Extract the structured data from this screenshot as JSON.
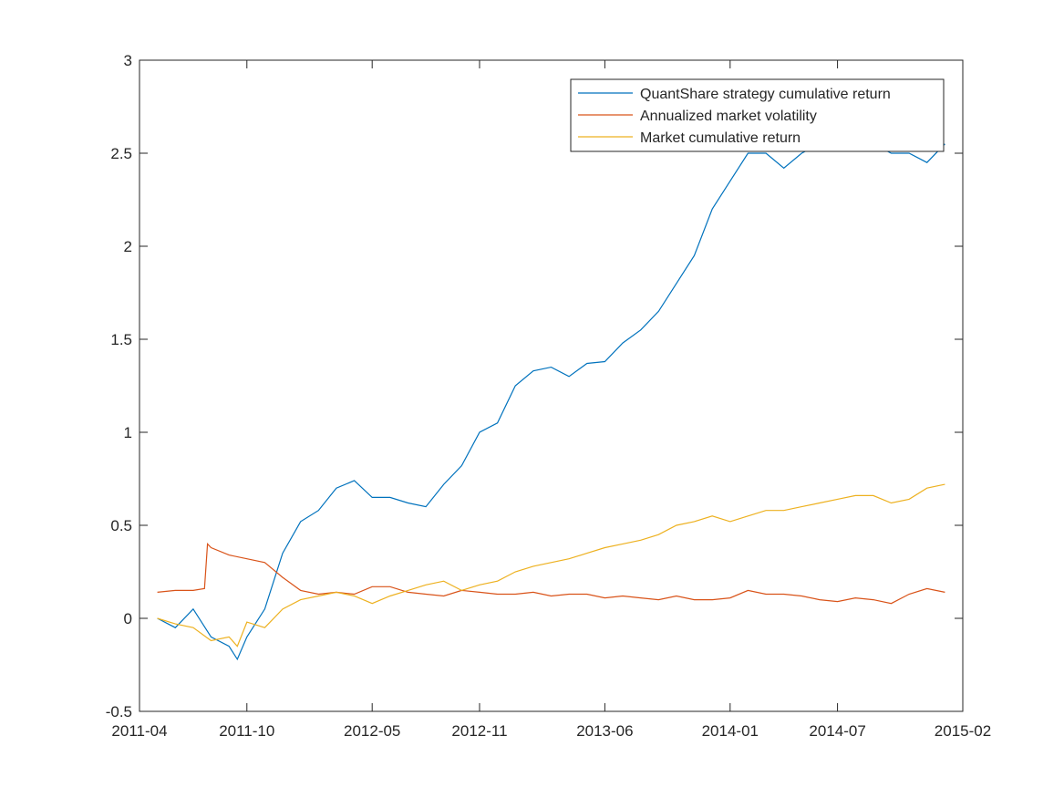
{
  "chart_data": {
    "type": "line",
    "title": "",
    "xlabel": "",
    "ylabel": "",
    "xlim": [
      "2011-04",
      "2015-02"
    ],
    "ylim": [
      -0.5,
      3
    ],
    "grid": false,
    "legend_position": "top-right",
    "x_ticks": [
      "2011-04",
      "2011-10",
      "2012-05",
      "2012-11",
      "2013-06",
      "2014-01",
      "2014-07",
      "2015-02"
    ],
    "y_ticks": [
      "-0.5",
      "0",
      "0.5",
      "1",
      "1.5",
      "2",
      "2.5",
      "3"
    ],
    "series": [
      {
        "name": "QuantShare strategy cumulative return",
        "color": "#0072BD",
        "x": [
          "2011-05",
          "2011-06",
          "2011-07",
          "2011-08",
          "2011-09",
          "2011-09-15",
          "2011-10",
          "2011-11",
          "2011-12",
          "2012-01",
          "2012-02",
          "2012-03",
          "2012-04",
          "2012-05",
          "2012-06",
          "2012-07",
          "2012-08",
          "2012-09",
          "2012-10",
          "2012-11",
          "2012-12",
          "2013-01",
          "2013-02",
          "2013-03",
          "2013-04",
          "2013-05",
          "2013-06",
          "2013-07",
          "2013-08",
          "2013-09",
          "2013-10",
          "2013-11",
          "2013-12",
          "2014-01",
          "2014-02",
          "2014-03",
          "2014-04",
          "2014-05",
          "2014-06",
          "2014-07",
          "2014-08",
          "2014-09",
          "2014-10",
          "2014-11",
          "2014-12",
          "2015-01"
        ],
        "values": [
          0.0,
          -0.05,
          0.05,
          -0.1,
          -0.15,
          -0.22,
          -0.1,
          0.05,
          0.35,
          0.52,
          0.58,
          0.7,
          0.74,
          0.65,
          0.65,
          0.62,
          0.6,
          0.72,
          0.82,
          1.0,
          1.05,
          1.25,
          1.33,
          1.35,
          1.3,
          1.37,
          1.38,
          1.48,
          1.55,
          1.65,
          1.8,
          1.95,
          2.2,
          2.35,
          2.5,
          2.5,
          2.42,
          2.5,
          2.55,
          2.55,
          2.6,
          2.55,
          2.5,
          2.5,
          2.45,
          2.55
        ]
      },
      {
        "name": "Annualized market volatility",
        "color": "#D95319",
        "x": [
          "2011-05",
          "2011-06",
          "2011-07",
          "2011-07-20",
          "2011-07-25",
          "2011-08",
          "2011-09",
          "2011-10",
          "2011-11",
          "2011-12",
          "2012-01",
          "2012-02",
          "2012-03",
          "2012-04",
          "2012-05",
          "2012-06",
          "2012-07",
          "2012-08",
          "2012-09",
          "2012-10",
          "2012-11",
          "2012-12",
          "2013-01",
          "2013-02",
          "2013-03",
          "2013-04",
          "2013-05",
          "2013-06",
          "2013-07",
          "2013-08",
          "2013-09",
          "2013-10",
          "2013-11",
          "2013-12",
          "2014-01",
          "2014-02",
          "2014-03",
          "2014-04",
          "2014-05",
          "2014-06",
          "2014-07",
          "2014-08",
          "2014-09",
          "2014-10",
          "2014-11",
          "2014-12",
          "2015-01"
        ],
        "values": [
          0.14,
          0.15,
          0.15,
          0.16,
          0.4,
          0.38,
          0.34,
          0.32,
          0.3,
          0.22,
          0.15,
          0.13,
          0.14,
          0.13,
          0.17,
          0.17,
          0.14,
          0.13,
          0.12,
          0.15,
          0.14,
          0.13,
          0.13,
          0.14,
          0.12,
          0.13,
          0.13,
          0.11,
          0.12,
          0.11,
          0.1,
          0.12,
          0.1,
          0.1,
          0.11,
          0.15,
          0.13,
          0.13,
          0.12,
          0.1,
          0.09,
          0.11,
          0.1,
          0.08,
          0.13,
          0.16,
          0.14
        ]
      },
      {
        "name": "Market cumulative return",
        "color": "#EDB120",
        "x": [
          "2011-05",
          "2011-06",
          "2011-07",
          "2011-08",
          "2011-09",
          "2011-09-15",
          "2011-10",
          "2011-11",
          "2011-12",
          "2012-01",
          "2012-02",
          "2012-03",
          "2012-04",
          "2012-05",
          "2012-06",
          "2012-07",
          "2012-08",
          "2012-09",
          "2012-10",
          "2012-11",
          "2012-12",
          "2013-01",
          "2013-02",
          "2013-03",
          "2013-04",
          "2013-05",
          "2013-06",
          "2013-07",
          "2013-08",
          "2013-09",
          "2013-10",
          "2013-11",
          "2013-12",
          "2014-01",
          "2014-02",
          "2014-03",
          "2014-04",
          "2014-05",
          "2014-06",
          "2014-07",
          "2014-08",
          "2014-09",
          "2014-10",
          "2014-11",
          "2014-12",
          "2015-01"
        ],
        "values": [
          0.0,
          -0.03,
          -0.05,
          -0.12,
          -0.1,
          -0.15,
          -0.02,
          -0.05,
          0.05,
          0.1,
          0.12,
          0.14,
          0.12,
          0.08,
          0.12,
          0.15,
          0.18,
          0.2,
          0.15,
          0.18,
          0.2,
          0.25,
          0.28,
          0.3,
          0.32,
          0.35,
          0.38,
          0.4,
          0.42,
          0.45,
          0.5,
          0.52,
          0.55,
          0.52,
          0.55,
          0.58,
          0.58,
          0.6,
          0.62,
          0.64,
          0.66,
          0.66,
          0.62,
          0.64,
          0.7,
          0.72
        ]
      }
    ]
  }
}
